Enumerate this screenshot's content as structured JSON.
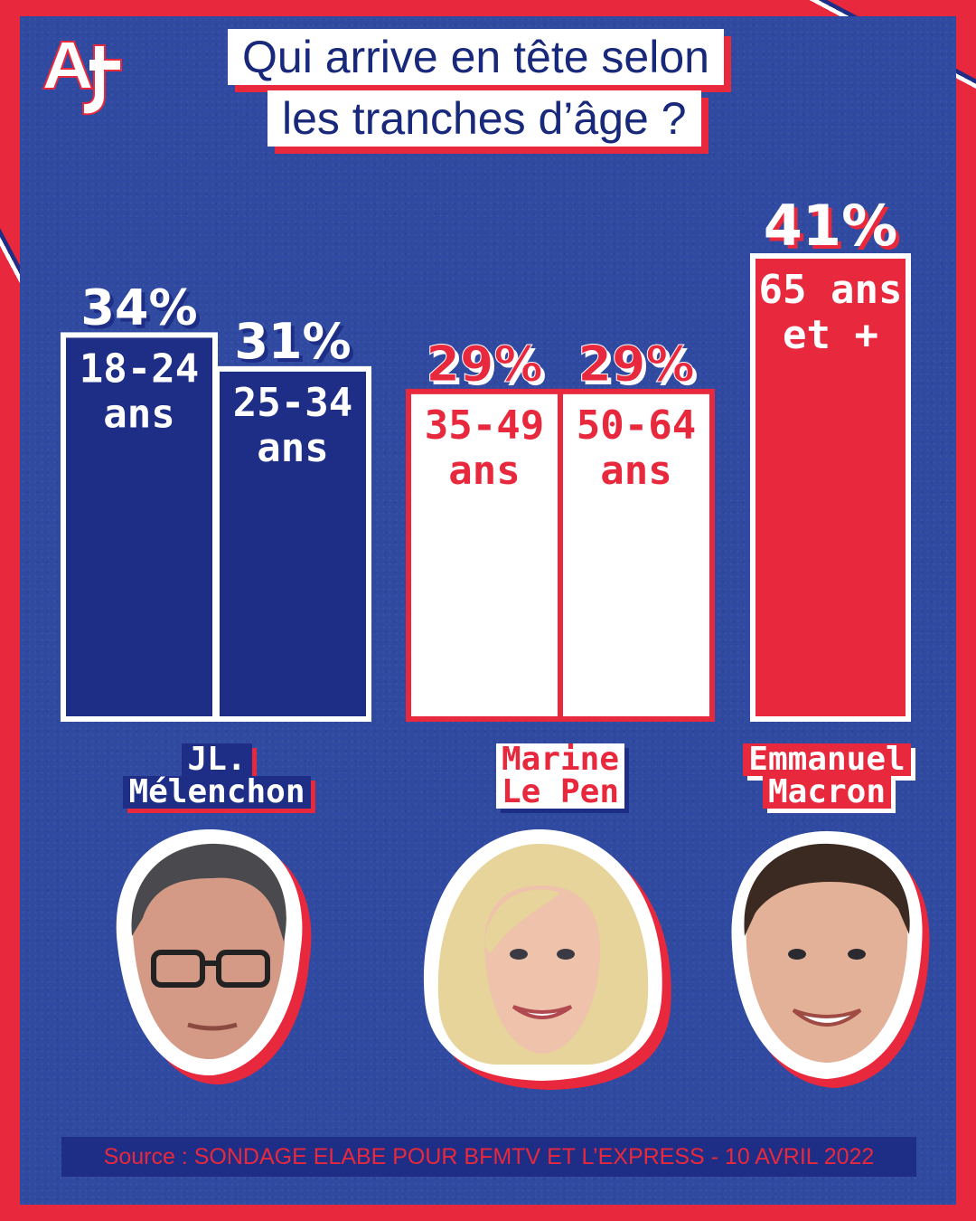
{
  "logo": {
    "text": "AJ+",
    "icon": "aj-plus-logo"
  },
  "title": {
    "line1": "Qui arrive en tête selon",
    "line2": "les tranches d’âge ?"
  },
  "chart_data": {
    "type": "bar",
    "title": "Qui arrive en tête selon les tranches d’âge ?",
    "categories": [
      "18-24 ans",
      "25-34 ans",
      "35-49 ans",
      "50-64 ans",
      "65 ans et +"
    ],
    "values": [
      34,
      31,
      29,
      29,
      41
    ],
    "value_labels": [
      "34%",
      "31%",
      "29%",
      "29%",
      "41%"
    ],
    "bar_labels": [
      [
        "18-24",
        "ans"
      ],
      [
        "25-34",
        "ans"
      ],
      [
        "35-49",
        "ans"
      ],
      [
        "50-64",
        "ans"
      ],
      [
        "65 ans",
        "et +"
      ]
    ],
    "leader_by_bar": [
      "JL. Mélenchon",
      "JL. Mélenchon",
      "Marine Le Pen",
      "Marine Le Pen",
      "Emmanuel Macron"
    ],
    "unit": "%",
    "colors": {
      "melenchon": "#1e2e86",
      "lepen": "#ffffff",
      "macron": "#e8283c"
    },
    "grid": false,
    "legend": "none"
  },
  "candidates": [
    {
      "line1": "JL.",
      "line2": "Mélenchon",
      "style": "blue",
      "icon": "melenchon-portrait"
    },
    {
      "line1": "Marine",
      "line2": "Le Pen",
      "style": "white",
      "icon": "le-pen-portrait"
    },
    {
      "line1": "Emmanuel",
      "line2": "Macron",
      "style": "red",
      "icon": "macron-portrait"
    }
  ],
  "source": "Source : SONDAGE ELABE POUR BFMTV ET L’EXPRESS - 10  AVRIL 2022",
  "colors": {
    "background_red": "#e8283c",
    "panel_blue": "#2f4aa0",
    "navy": "#1e2e86",
    "white": "#ffffff"
  }
}
